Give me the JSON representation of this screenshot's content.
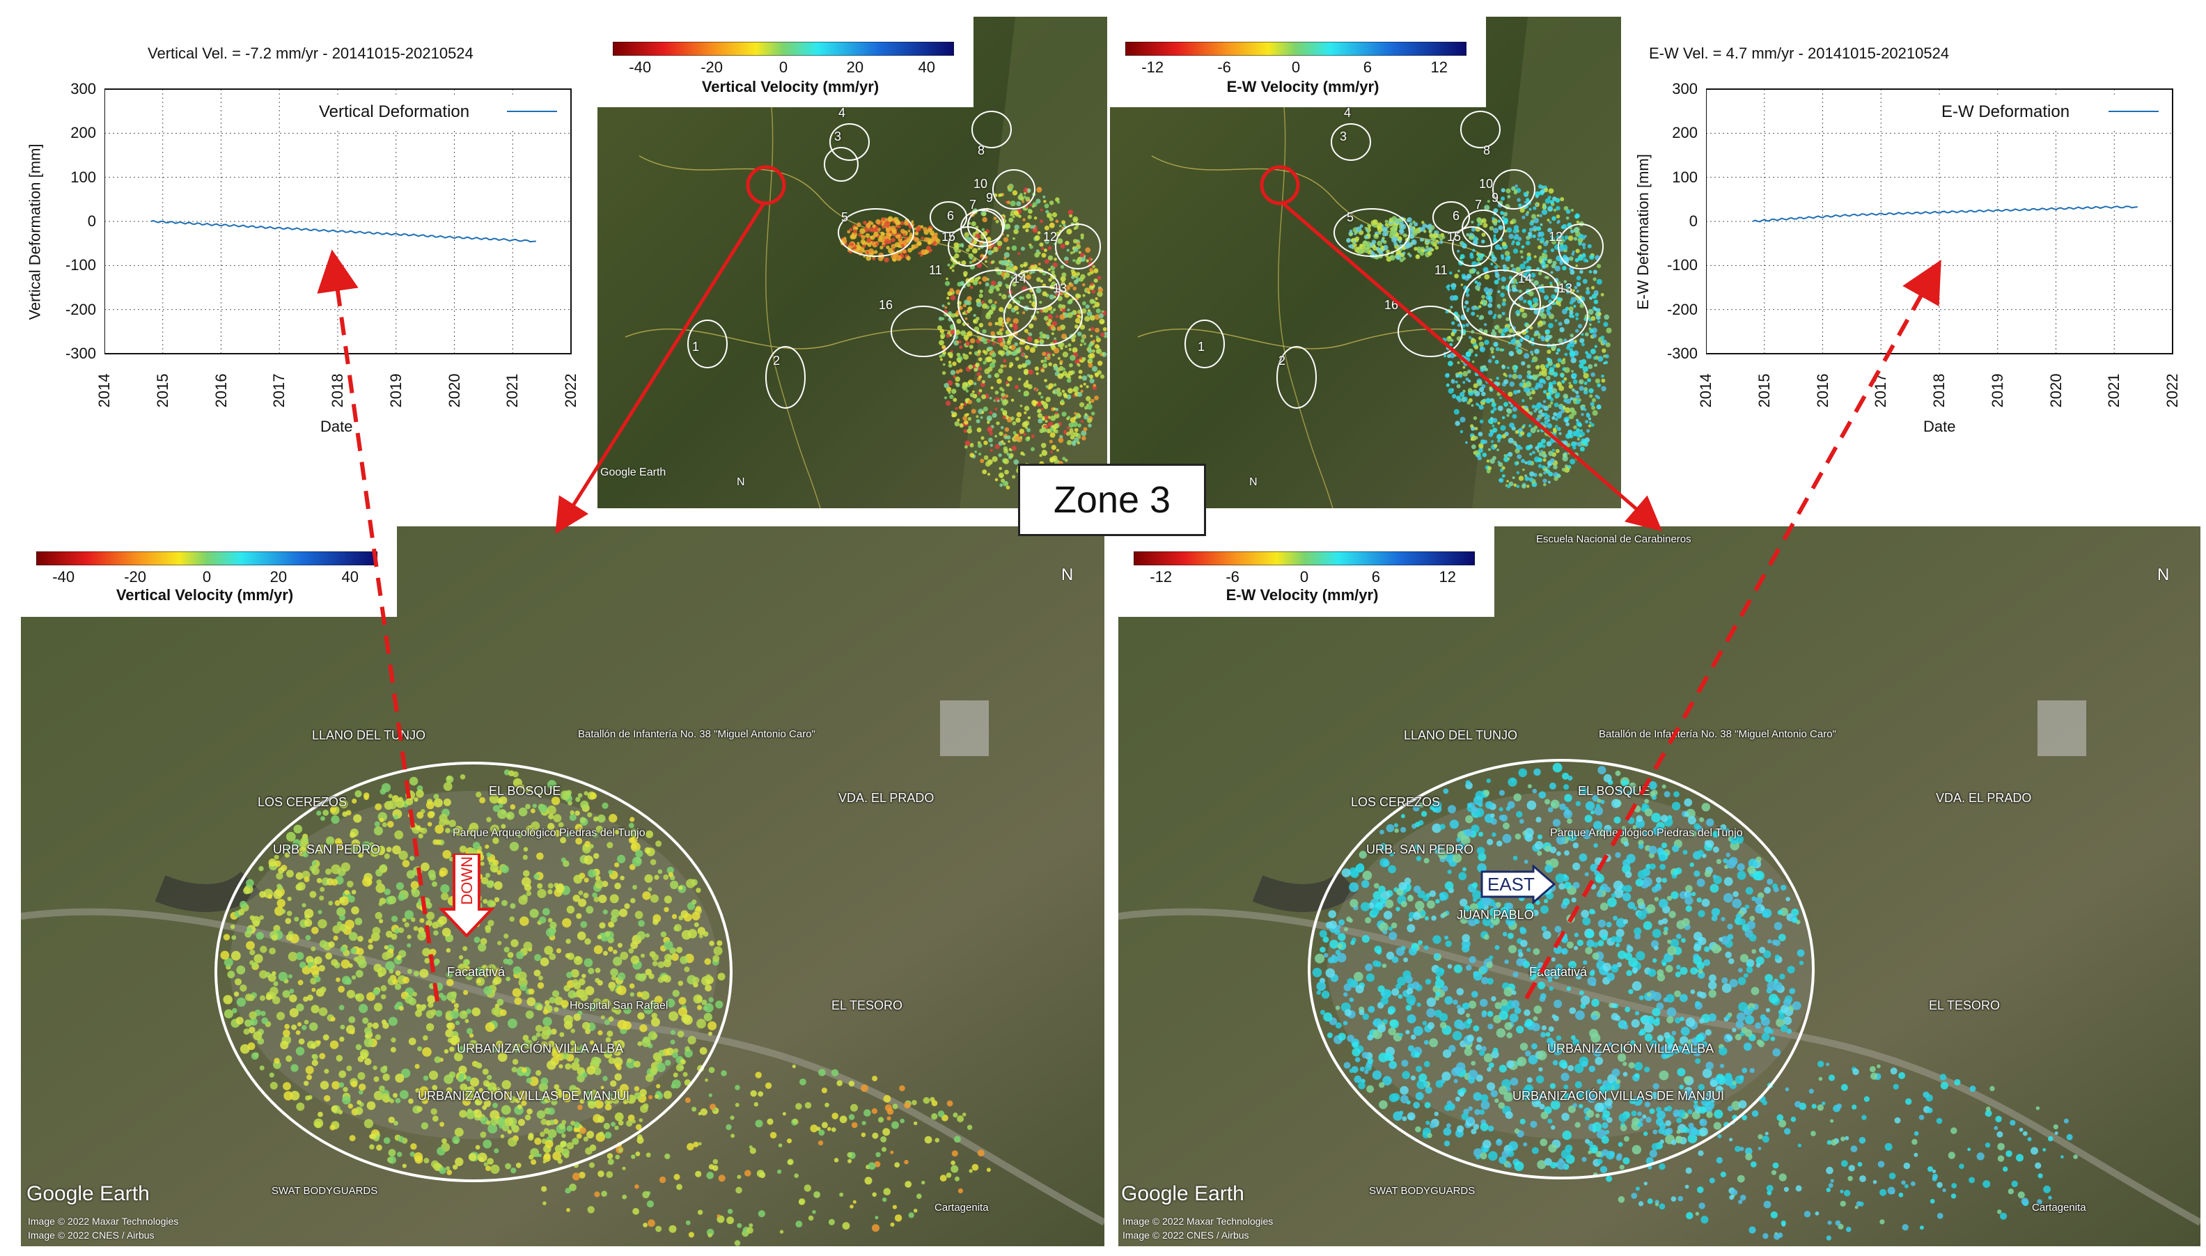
{
  "left_plot": {
    "title": "Vertical Vel. = -7.2 mm/yr - 20141015-20210524",
    "ylabel": "Vertical Deformation [mm]",
    "xlabel": "Date",
    "legend": "Vertical Deformation",
    "yticks": [
      "300",
      "200",
      "100",
      "0",
      "-100",
      "-200",
      "-300"
    ],
    "xticks": [
      "2014",
      "2015",
      "2016",
      "2017",
      "2018",
      "2019",
      "2020",
      "2021",
      "2022"
    ],
    "line_color": "#1f6fb4"
  },
  "right_plot": {
    "title": "E-W Vel. = 4.7 mm/yr - 20141015-20210524",
    "ylabel": "E-W Deformation [mm]",
    "xlabel": "Date",
    "legend": "E-W Deformation",
    "yticks": [
      "300",
      "200",
      "100",
      "0",
      "-100",
      "-200",
      "-300"
    ],
    "xticks": [
      "2014",
      "2015",
      "2016",
      "2017",
      "2018",
      "2019",
      "2020",
      "2021",
      "2022"
    ],
    "line_color": "#1f6fb4"
  },
  "chart_data": [
    {
      "type": "line",
      "title": "Vertical Vel. = -7.2 mm/yr - 20141015-20210524",
      "xlabel": "Date",
      "ylabel": "Vertical Deformation [mm]",
      "xlim": [
        2014,
        2022
      ],
      "ylim": [
        -300,
        300
      ],
      "grid": true,
      "legend_position": "top-right",
      "series": [
        {
          "name": "Vertical Deformation",
          "x": [
            2014.8,
            2015.3,
            2015.8,
            2016.3,
            2016.8,
            2017.3,
            2017.8,
            2018.3,
            2018.8,
            2019.3,
            2019.8,
            2020.3,
            2020.8,
            2021.4
          ],
          "values": [
            0,
            -3,
            -7,
            -10,
            -14,
            -17,
            -21,
            -24,
            -28,
            -31,
            -35,
            -38,
            -41,
            -45
          ]
        }
      ]
    },
    {
      "type": "line",
      "title": "E-W Vel. = 4.7 mm/yr - 20141015-20210524",
      "xlabel": "Date",
      "ylabel": "E-W Deformation [mm]",
      "xlim": [
        2014,
        2022
      ],
      "ylim": [
        -300,
        300
      ],
      "grid": true,
      "legend_position": "top-right",
      "series": [
        {
          "name": "E-W Deformation",
          "x": [
            2014.8,
            2015.3,
            2015.8,
            2016.3,
            2016.8,
            2017.3,
            2017.8,
            2018.3,
            2018.8,
            2019.3,
            2019.8,
            2020.3,
            2020.8,
            2021.4
          ],
          "values": [
            0,
            5,
            9,
            13,
            16,
            18,
            20,
            22,
            24,
            26,
            28,
            30,
            32,
            33
          ]
        }
      ]
    }
  ],
  "vertical_colorbar": {
    "label": "Vertical Velocity (mm/yr)",
    "ticks": [
      "-40",
      "-20",
      "0",
      "20",
      "40"
    ]
  },
  "ew_colorbar": {
    "label": "E-W Velocity (mm/yr)",
    "ticks": [
      "-12",
      "-6",
      "0",
      "6",
      "12"
    ]
  },
  "overview_zone_numbers": [
    "1",
    "2",
    "3",
    "4",
    "5",
    "6",
    "7",
    "8",
    "9",
    "10",
    "11",
    "12",
    "13",
    "14",
    "15",
    "16"
  ],
  "zone_title": "Zone 3",
  "detail_places": {
    "llano": "LLANO DEL TUNJO",
    "batallon": "Batallón de Infantería No. 38 \"Miguel Antonio Caro\"",
    "cerezos": "LOS CEREZOS",
    "bosque": "EL BOSQUE",
    "prado": "VDA. EL PRADO",
    "parque": "Parque Arqueológico Piedras del Tunjo",
    "sanpedro": "URB. SAN PEDRO",
    "sanpablo": "JUAN PABLO",
    "facatativa": "Facatativá",
    "sanrafael": "Hospital San Rafael",
    "tesoro": "EL TESORO",
    "villaalba": "URBANIZACIÓN VILLA ALBA",
    "manjui": "URBANIZACIÓN VILLAS DE MANJUI",
    "swat": "SWAT BODYGUARDS",
    "cartagenita": "Cartagenita",
    "carabineros": "Escuela Nacional de Carabineros"
  },
  "arrows": {
    "down": "DOWN",
    "east": "EAST"
  },
  "google_earth": "Google Earth",
  "imagery_credit": "Image © 2022 Maxar Technologies",
  "imagery_credit2": "Image © 2022 CNES / Airbus",
  "north_label": "N"
}
